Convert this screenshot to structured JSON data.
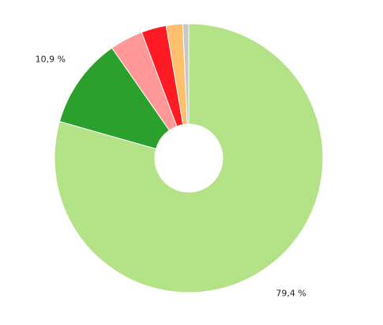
{
  "chart_data": {
    "type": "donut",
    "values": [
      79.4,
      10.9,
      4.0,
      3.0,
      2.0,
      0.7
    ],
    "value_labels": [
      "79,4 %",
      "10,9 %",
      null,
      null,
      null,
      null
    ],
    "colors": [
      "#b3e287",
      "#2ca02c",
      "#ff9896",
      "#ff1a24",
      "#ffc06e",
      "#c7c7c7"
    ]
  }
}
